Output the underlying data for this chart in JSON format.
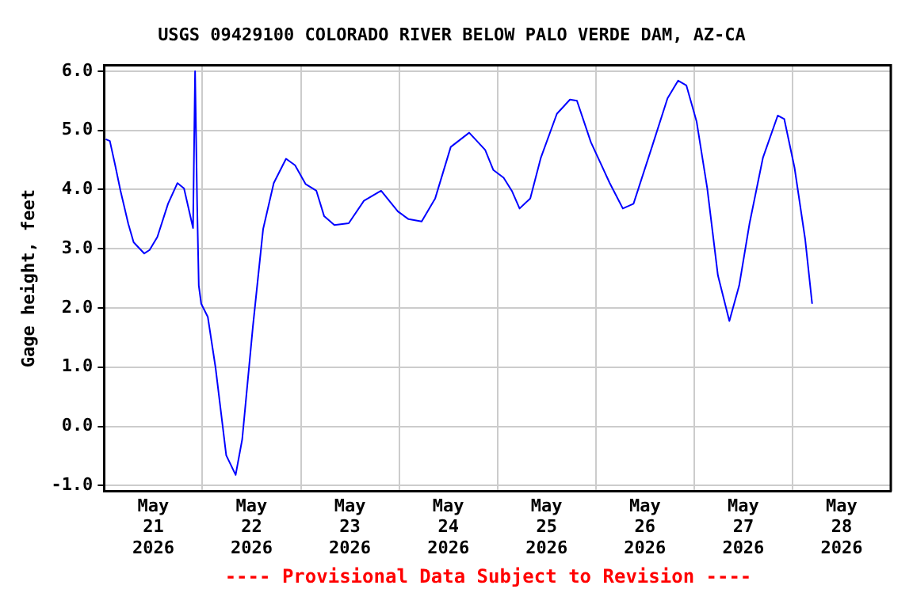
{
  "chart_data": {
    "type": "line",
    "title": "USGS 09429100 COLORADO RIVER BELOW PALO VERDE DAM, AZ-CA",
    "ylabel": "Gage height, feet",
    "annotations": [
      "---- Provisional Data Subject to Revision ----"
    ],
    "x": [
      "2026-05-21T00:24",
      "2026-05-21T01:24",
      "2026-05-21T02:42",
      "2026-05-21T04:00",
      "2026-05-21T05:54",
      "2026-05-21T07:12",
      "2026-05-21T09:48",
      "2026-05-21T11:06",
      "2026-05-21T13:00",
      "2026-05-21T15:36",
      "2026-05-21T17:54",
      "2026-05-21T19:30",
      "2026-05-21T21:42",
      "2026-05-21T22:12",
      "2026-05-21T22:42",
      "2026-05-21T23:06",
      "2026-05-21T23:42",
      "2026-05-22T01:18",
      "2026-05-22T03:12",
      "2026-05-22T05:48",
      "2026-05-22T08:06",
      "2026-05-22T09:42",
      "2026-05-22T12:18",
      "2026-05-22T14:48",
      "2026-05-22T17:24",
      "2026-05-22T20:24",
      "2026-05-22T22:36",
      "2026-05-23T01:12",
      "2026-05-23T03:48",
      "2026-05-23T05:42",
      "2026-05-23T08:12",
      "2026-05-23T11:42",
      "2026-05-23T15:24",
      "2026-05-23T19:36",
      "2026-05-23T23:42",
      "2026-05-24T02:18",
      "2026-05-24T05:30",
      "2026-05-24T08:48",
      "2026-05-24T12:36",
      "2026-05-24T17:06",
      "2026-05-24T21:00",
      "2026-05-24T23:00",
      "2026-05-25T01:30",
      "2026-05-25T03:30",
      "2026-05-25T05:24",
      "2026-05-25T08:00",
      "2026-05-25T10:36",
      "2026-05-25T14:30",
      "2026-05-25T17:42",
      "2026-05-25T19:24",
      "2026-05-25T22:48",
      "2026-05-26T03:24",
      "2026-05-26T06:36",
      "2026-05-26T09:12",
      "2026-05-26T13:42",
      "2026-05-26T17:30",
      "2026-05-26T20:06",
      "2026-05-26T22:06",
      "2026-05-27T00:36",
      "2026-05-27T03:12",
      "2026-05-27T05:48",
      "2026-05-27T08:36",
      "2026-05-27T11:00",
      "2026-05-27T13:30",
      "2026-05-27T16:48",
      "2026-05-27T20:24",
      "2026-05-27T22:00",
      "2026-05-28T00:30",
      "2026-05-28T03:06",
      "2026-05-28T04:48"
    ],
    "series": [
      {
        "color": "#0000ff",
        "values": [
          4.85,
          4.82,
          4.41,
          3.98,
          3.42,
          3.11,
          2.92,
          2.98,
          3.2,
          3.76,
          4.11,
          4.02,
          3.35,
          6.0,
          3.76,
          2.38,
          2.07,
          1.85,
          0.99,
          -0.49,
          -0.82,
          -0.22,
          1.68,
          3.33,
          4.11,
          4.52,
          4.41,
          4.09,
          3.98,
          3.55,
          3.4,
          3.43,
          3.81,
          3.98,
          3.63,
          3.5,
          3.46,
          3.85,
          4.72,
          4.96,
          4.67,
          4.33,
          4.2,
          3.98,
          3.68,
          3.85,
          4.54,
          5.28,
          5.52,
          5.5,
          4.8,
          4.11,
          3.68,
          3.76,
          4.72,
          5.54,
          5.84,
          5.76,
          5.15,
          4.02,
          2.55,
          1.78,
          2.38,
          3.42,
          4.54,
          5.25,
          5.19,
          4.37,
          3.16,
          2.07
        ]
      }
    ],
    "xlim": [
      "2026-05-21T00:00",
      "2026-05-29T00:00"
    ],
    "xticks": [
      {
        "value": "2026-05-21T12:00",
        "label": "May 21 2026"
      },
      {
        "value": "2026-05-22T00:00",
        "label": null
      },
      {
        "value": "2026-05-22T12:00",
        "label": "May 22 2026"
      },
      {
        "value": "2026-05-23T00:00",
        "label": null
      },
      {
        "value": "2026-05-23T12:00",
        "label": "May 23 2026"
      },
      {
        "value": "2026-05-24T00:00",
        "label": null
      },
      {
        "value": "2026-05-24T12:00",
        "label": "May 24 2026"
      },
      {
        "value": "2026-05-25T00:00",
        "label": null
      },
      {
        "value": "2026-05-25T12:00",
        "label": "May 25 2026"
      },
      {
        "value": "2026-05-26T00:00",
        "label": null
      },
      {
        "value": "2026-05-26T12:00",
        "label": "May 26 2026"
      },
      {
        "value": "2026-05-27T00:00",
        "label": null
      },
      {
        "value": "2026-05-27T12:00",
        "label": "May 27 2026"
      },
      {
        "value": "2026-05-28T00:00",
        "label": null
      },
      {
        "value": "2026-05-28T12:00",
        "label": "May 28 2026"
      }
    ],
    "ylim": [
      -1.1,
      6.1
    ],
    "yticks": [
      {
        "value": -1,
        "label": "-1.0"
      },
      {
        "value": 0,
        "label": "0.0"
      },
      {
        "value": 1,
        "label": "1.0"
      },
      {
        "value": 2,
        "label": "2.0"
      },
      {
        "value": 3,
        "label": "3.0"
      },
      {
        "value": 4,
        "label": "4.0"
      },
      {
        "value": 5,
        "label": "5.0"
      },
      {
        "value": 6,
        "label": "6.0"
      }
    ],
    "grid": true,
    "legend": false,
    "marker": "none",
    "line_style": "solid"
  }
}
